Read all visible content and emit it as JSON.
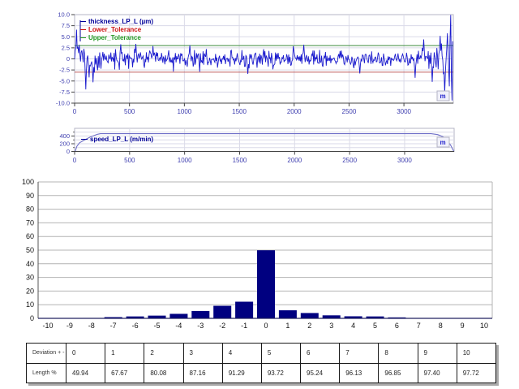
{
  "unit_label": "m",
  "colors": {
    "signal_blue": "#1a1acd",
    "speed_line": "#7070c8",
    "legend_navy": "#000099",
    "tol_red_text": "#cc1111",
    "tol_green_text": "#229922",
    "tol_red_line": "#c06060",
    "tol_green_line": "#3c8c3c",
    "axis_label_blue": "#4040b0",
    "grid_light": "#dadae8",
    "border_light": "#b4b4c4",
    "hist_bar": "#000080",
    "hist_grid": "#b4b4b4",
    "hist_label": "#111111"
  },
  "chart_data": [
    {
      "type": "line",
      "name": "thickness",
      "legend": [
        {
          "label": "thickness_LP_L (µm)",
          "color": "#000099"
        },
        {
          "label": "Lower_Tolerance",
          "color": "#cc1111"
        },
        {
          "label": "Upper_Tolerance",
          "color": "#229922"
        }
      ],
      "xlim": [
        0,
        3450
      ],
      "x_ticks": [
        0,
        500,
        1000,
        1500,
        2000,
        2500,
        3000
      ],
      "ylim": [
        -10,
        10
      ],
      "y_ticks": [
        10.0,
        7.5,
        5.0,
        2.5,
        0,
        -2.5,
        -5.0,
        -7.5,
        -10.0
      ],
      "y_tick_labels": [
        "10.0",
        "7.5",
        "5.0",
        "2.5",
        "0",
        "-2.5",
        "-5.0",
        "-7.5",
        "-10.0"
      ],
      "upper_tolerance": 3,
      "lower_tolerance": -3,
      "xlabel": "m",
      "signal": {
        "kind": "random-noise-around-zero",
        "mean": 0,
        "std": 1.1,
        "step_m": 6,
        "end_m": 3448,
        "start_boost": 1.5,
        "end_boost": 2.5,
        "seed": 987654321,
        "spikes": [
          [
            10,
            5.0
          ],
          [
            16,
            6.6
          ],
          [
            40,
            3.2
          ],
          [
            100,
            -6.9
          ],
          [
            130,
            -4.2
          ],
          [
            165,
            -5.3
          ],
          [
            420,
            3.3
          ],
          [
            560,
            3.4
          ],
          [
            1050,
            3.1
          ],
          [
            1580,
            -3.4
          ],
          [
            2090,
            3.2
          ],
          [
            2600,
            -3.3
          ],
          [
            3100,
            -4.3
          ],
          [
            3180,
            4.4
          ],
          [
            3260,
            -5.2
          ],
          [
            3330,
            5.2
          ],
          [
            3370,
            -7.8
          ],
          [
            3398,
            5.8
          ],
          [
            3412,
            -6.2
          ],
          [
            3428,
            9.9
          ],
          [
            3438,
            -9.4
          ],
          [
            3448,
            9.9
          ]
        ]
      }
    },
    {
      "type": "line",
      "name": "speed",
      "legend": [
        {
          "label": "speed_LP_L (m/min)",
          "color": "#000099"
        }
      ],
      "xlim": [
        0,
        3450
      ],
      "x_ticks": [
        0,
        500,
        1000,
        1500,
        2000,
        2500,
        3000
      ],
      "ylim": [
        0,
        600
      ],
      "y_ticks": [
        0,
        200,
        400
      ],
      "minor_y_ticks": [
        100,
        300,
        500
      ],
      "xlabel": "m",
      "points": [
        [
          5,
          0
        ],
        [
          20,
          130
        ],
        [
          45,
          225
        ],
        [
          95,
          305
        ],
        [
          140,
          370
        ],
        [
          205,
          445
        ],
        [
          235,
          460
        ],
        [
          3240,
          460
        ],
        [
          3300,
          438
        ],
        [
          3350,
          378
        ],
        [
          3390,
          275
        ],
        [
          3420,
          155
        ],
        [
          3438,
          50
        ],
        [
          3448,
          0
        ]
      ]
    },
    {
      "type": "bar",
      "name": "deviation-histogram",
      "categories": [
        -10,
        -9,
        -8,
        -7,
        -6,
        -5,
        -4,
        -3,
        -2,
        -1,
        0,
        1,
        2,
        3,
        4,
        5,
        6,
        7,
        8,
        9,
        10
      ],
      "values": [
        0,
        0.1,
        0.3,
        0.9,
        1.4,
        2.0,
        3.3,
        5.4,
        9.2,
        12.2,
        49.9,
        5.9,
        3.9,
        2.2,
        1.5,
        1.4,
        0.7,
        0.3,
        0.2,
        0.1,
        0.05
      ],
      "ylim": [
        0,
        100
      ],
      "y_ticks": [
        0,
        10,
        20,
        30,
        40,
        50,
        60,
        70,
        80,
        90,
        100
      ],
      "grid": true
    }
  ],
  "table": {
    "rows": [
      {
        "label": "Deviation + -",
        "values": [
          "0",
          "1",
          "2",
          "3",
          "4",
          "5",
          "6",
          "7",
          "8",
          "9",
          "10"
        ]
      },
      {
        "label": "Length %",
        "values": [
          "49.94",
          "67.67",
          "80.08",
          "87.16",
          "91.29",
          "93.72",
          "95.24",
          "96.13",
          "96.85",
          "97.40",
          "97.72"
        ]
      }
    ]
  }
}
